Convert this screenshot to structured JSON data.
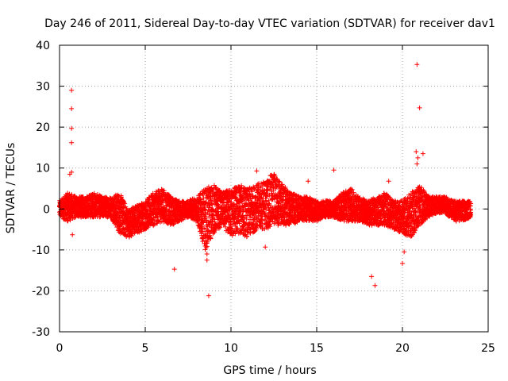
{
  "chart_data": {
    "type": "scatter",
    "title": "Day 246 of 2011, Sidereal Day-to-day VTEC variation (SDTVAR) for receiver dav1",
    "xlabel": "GPS time / hours",
    "ylabel": "SDTVAR / TECUs",
    "xlim": [
      0,
      25
    ],
    "ylim": [
      -30,
      40
    ],
    "xticks": [
      0,
      5,
      10,
      15,
      20,
      25
    ],
    "yticks": [
      -30,
      -20,
      -10,
      0,
      10,
      20,
      30,
      40
    ],
    "grid": true,
    "marker": "+",
    "color": "#ff0000",
    "band": [
      [
        0.0,
        -2,
        2
      ],
      [
        0.5,
        -3,
        4
      ],
      [
        1.0,
        -2,
        3
      ],
      [
        1.5,
        -2,
        3
      ],
      [
        2.0,
        -2,
        4
      ],
      [
        2.5,
        -2,
        3
      ],
      [
        3.0,
        -2,
        3
      ],
      [
        3.5,
        -6,
        4
      ],
      [
        4.0,
        -7,
        0
      ],
      [
        4.5,
        -6,
        1
      ],
      [
        5.0,
        -5,
        2
      ],
      [
        5.5,
        -4,
        4
      ],
      [
        6.0,
        -3,
        5
      ],
      [
        6.5,
        -4,
        3
      ],
      [
        7.0,
        -3,
        2
      ],
      [
        7.5,
        -2,
        2
      ],
      [
        8.0,
        -3,
        3
      ],
      [
        8.5,
        -10,
        5
      ],
      [
        9.0,
        -6,
        6
      ],
      [
        9.5,
        -4,
        4
      ],
      [
        10.0,
        -7,
        5
      ],
      [
        10.5,
        -6,
        6
      ],
      [
        11.0,
        -7,
        5
      ],
      [
        11.5,
        -5,
        6
      ],
      [
        12.0,
        -5,
        7
      ],
      [
        12.5,
        -4,
        9
      ],
      [
        13.0,
        -4,
        6
      ],
      [
        13.5,
        -4,
        4
      ],
      [
        14.0,
        -3,
        3
      ],
      [
        14.5,
        -3,
        3
      ],
      [
        15.0,
        -3,
        2
      ],
      [
        15.5,
        -2,
        2
      ],
      [
        16.0,
        -2,
        2
      ],
      [
        16.5,
        -3,
        4
      ],
      [
        17.0,
        -3,
        5
      ],
      [
        17.5,
        -3,
        3
      ],
      [
        18.0,
        -4,
        2
      ],
      [
        18.5,
        -4,
        3
      ],
      [
        19.0,
        -4,
        4
      ],
      [
        19.5,
        -5,
        2
      ],
      [
        20.0,
        -6,
        2
      ],
      [
        20.5,
        -7,
        4
      ],
      [
        21.0,
        -4,
        6
      ],
      [
        21.5,
        -2,
        3
      ],
      [
        22.0,
        -1,
        3
      ],
      [
        22.5,
        -1,
        3
      ],
      [
        23.0,
        -3,
        2
      ],
      [
        23.5,
        -3,
        2
      ],
      [
        24.0,
        -2,
        2
      ]
    ],
    "outliers": [
      [
        0.7,
        29.0
      ],
      [
        0.7,
        24.5
      ],
      [
        0.7,
        19.7
      ],
      [
        0.7,
        16.2
      ],
      [
        0.7,
        9.0
      ],
      [
        0.6,
        8.5
      ],
      [
        0.75,
        -6.3
      ],
      [
        6.7,
        -14.7
      ],
      [
        8.7,
        -21.2
      ],
      [
        8.6,
        -12.5
      ],
      [
        8.6,
        -11.0
      ],
      [
        11.5,
        9.3
      ],
      [
        12.0,
        -9.3
      ],
      [
        14.5,
        6.8
      ],
      [
        16.0,
        9.5
      ],
      [
        18.2,
        -16.5
      ],
      [
        18.4,
        -18.7
      ],
      [
        19.2,
        6.8
      ],
      [
        20.0,
        -13.3
      ],
      [
        20.1,
        -10.5
      ],
      [
        20.85,
        35.3
      ],
      [
        21.0,
        24.7
      ],
      [
        20.8,
        14.0
      ],
      [
        21.2,
        13.5
      ],
      [
        20.9,
        12.5
      ],
      [
        20.85,
        11.0
      ]
    ]
  }
}
